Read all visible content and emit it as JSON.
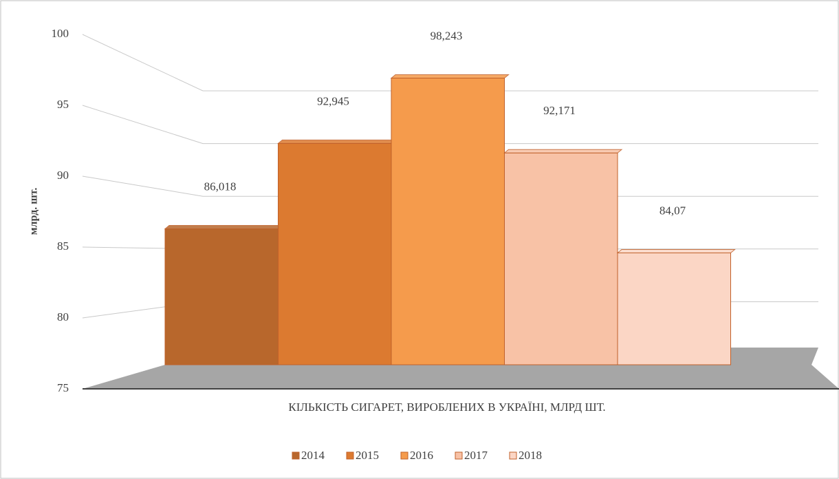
{
  "chart_data": {
    "type": "bar3d",
    "categories": [
      "КІЛЬКІСТЬ СИГАРЕТ, ВИРОБЛЕНИХ В УКРАЇНІ, МЛРД ШТ."
    ],
    "y_label": "млрд. шт.",
    "series": [
      {
        "name": "2014",
        "color": "#b8672c",
        "values": [
          86.018
        ],
        "value_labels": [
          "86,018"
        ]
      },
      {
        "name": "2015",
        "color": "#dc7a30",
        "values": [
          92.945
        ],
        "value_labels": [
          "92,945"
        ]
      },
      {
        "name": "2016",
        "color": "#f59b4c",
        "values": [
          98.243
        ],
        "value_labels": [
          "98,243"
        ]
      },
      {
        "name": "2017",
        "color": "#f8c2a6",
        "values": [
          92.171
        ],
        "value_labels": [
          "92,171"
        ]
      },
      {
        "name": "2018",
        "color": "#fbd6c5",
        "values": [
          84.07
        ],
        "value_labels": [
          "84,07"
        ]
      }
    ],
    "ylim": [
      75,
      100
    ],
    "yticks": [
      75,
      80,
      85,
      90,
      95,
      100
    ],
    "grid": true,
    "legend": "bottom"
  }
}
